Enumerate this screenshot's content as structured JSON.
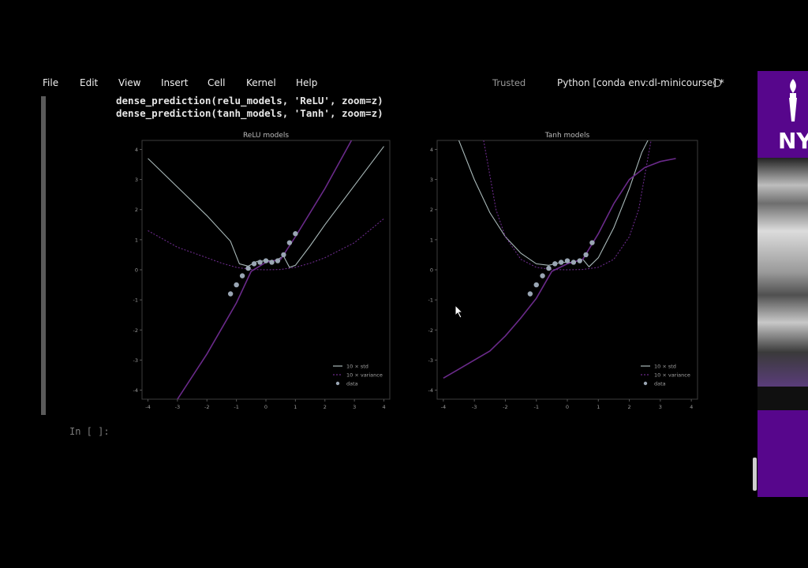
{
  "menu": [
    "File",
    "Edit",
    "View",
    "Insert",
    "Cell",
    "Kernel",
    "Help"
  ],
  "header": {
    "trusted": "Trusted",
    "kernel": "Python [conda env:dl-minicourse] *"
  },
  "code": {
    "line1_fn": "dense_prediction(relu_models, ",
    "line1_str": "'ReLU'",
    "line1_rest": ", zoom=z)",
    "line2_fn": "dense_prediction(tanh_models, ",
    "line2_str": "'Tanh'",
    "line2_rest": ", zoom=z)"
  },
  "prompt": "In [ ]:",
  "sidebar": {
    "logo_text": "NY"
  },
  "colors": {
    "std_line": "#a8b8b8",
    "variance_line": "#6a2a8a",
    "data_points": "#9aa6b4",
    "nyu_purple": "#57068c"
  },
  "chart_data": [
    {
      "type": "line",
      "title": "ReLU models",
      "xlim": [
        -4.2,
        4.2
      ],
      "ylim": [
        -4.3,
        4.3
      ],
      "xticks": [
        "-4",
        "-3",
        "-2",
        "-1",
        "0",
        "1",
        "2",
        "3",
        "4"
      ],
      "yticks": [
        "4",
        "3",
        "2",
        "1",
        "0",
        "-1",
        "-2",
        "-3",
        "-4"
      ],
      "legend": {
        "placement": "lower-right",
        "entries": [
          "10 × std",
          "10 × variance",
          "data"
        ]
      },
      "series": [
        {
          "name": "10 × std",
          "x": [
            -4,
            -3,
            -2,
            -1.2,
            -0.9,
            -0.6,
            -0.3,
            0,
            0.3,
            0.6,
            0.8,
            1.0,
            1.5,
            2,
            3,
            4
          ],
          "y": [
            3.7,
            2.75,
            1.8,
            0.95,
            0.2,
            0.12,
            0.28,
            0.3,
            0.3,
            0.45,
            0.08,
            0.15,
            0.8,
            1.5,
            2.8,
            4.1
          ]
        },
        {
          "name": "10 × variance",
          "x": [
            -4,
            -3,
            -2,
            -1.5,
            -1,
            -0.5,
            0,
            0.5,
            1,
            1.5,
            2,
            3,
            4
          ],
          "y": [
            1.3,
            0.75,
            0.4,
            0.22,
            0.08,
            0.01,
            0,
            0.01,
            0.08,
            0.22,
            0.4,
            0.9,
            1.7
          ]
        },
        {
          "name": "mean",
          "x": [
            -3,
            -2,
            -1,
            -0.5,
            0,
            0.5,
            1,
            2,
            2.9
          ],
          "y": [
            -4.3,
            -2.8,
            -1.1,
            -0.05,
            0.25,
            0.35,
            1.1,
            2.7,
            4.3
          ]
        },
        {
          "name": "data",
          "x": [
            -1.2,
            -1.0,
            -0.8,
            -0.6,
            -0.4,
            -0.2,
            0,
            0.2,
            0.4,
            0.6,
            0.8,
            1.0
          ],
          "y": [
            -0.8,
            -0.5,
            -0.2,
            0.05,
            0.2,
            0.25,
            0.3,
            0.25,
            0.3,
            0.5,
            0.9,
            1.2
          ]
        }
      ]
    },
    {
      "type": "line",
      "title": "Tanh models",
      "xlim": [
        -4.2,
        4.2
      ],
      "ylim": [
        -4.3,
        4.3
      ],
      "xticks": [
        "-4",
        "-3",
        "-2",
        "-1",
        "0",
        "1",
        "2",
        "3",
        "4"
      ],
      "yticks": [
        "4",
        "3",
        "2",
        "1",
        "0",
        "-1",
        "-2",
        "-3",
        "-4"
      ],
      "legend": {
        "placement": "lower-right",
        "entries": [
          "10 × std",
          "10 × variance",
          "data"
        ]
      },
      "series": [
        {
          "name": "10 × std",
          "x": [
            -3.5,
            -3,
            -2.5,
            -2,
            -1.5,
            -1,
            -0.6,
            -0.2,
            0.2,
            0.5,
            0.7,
            1.0,
            1.5,
            2,
            2.4,
            2.6
          ],
          "y": [
            4.3,
            3.0,
            1.9,
            1.1,
            0.55,
            0.2,
            0.15,
            0.25,
            0.25,
            0.35,
            0.1,
            0.4,
            1.4,
            2.7,
            3.9,
            4.3
          ]
        },
        {
          "name": "10 × variance",
          "x": [
            -2.7,
            -2.3,
            -2,
            -1.5,
            -1,
            -0.5,
            0,
            0.5,
            1,
            1.5,
            2,
            2.3,
            2.7
          ],
          "y": [
            4.3,
            2.0,
            1.1,
            0.35,
            0.08,
            0.01,
            0,
            0.01,
            0.08,
            0.35,
            1.1,
            2.0,
            4.3
          ]
        },
        {
          "name": "mean",
          "x": [
            -4,
            -3.5,
            -3,
            -2.5,
            -2,
            -1.5,
            -1,
            -0.5,
            0,
            0.5,
            1,
            1.5,
            2,
            2.5,
            3,
            3.5
          ],
          "y": [
            -3.6,
            -3.3,
            -3.0,
            -2.7,
            -2.2,
            -1.6,
            -0.95,
            -0.05,
            0.2,
            0.35,
            1.2,
            2.2,
            3.0,
            3.4,
            3.6,
            3.7
          ]
        },
        {
          "name": "data",
          "x": [
            -1.2,
            -1.0,
            -0.8,
            -0.6,
            -0.4,
            -0.2,
            0,
            0.2,
            0.4,
            0.6,
            0.8
          ],
          "y": [
            -0.8,
            -0.5,
            -0.2,
            0.05,
            0.2,
            0.25,
            0.3,
            0.25,
            0.3,
            0.5,
            0.9
          ]
        }
      ]
    }
  ]
}
